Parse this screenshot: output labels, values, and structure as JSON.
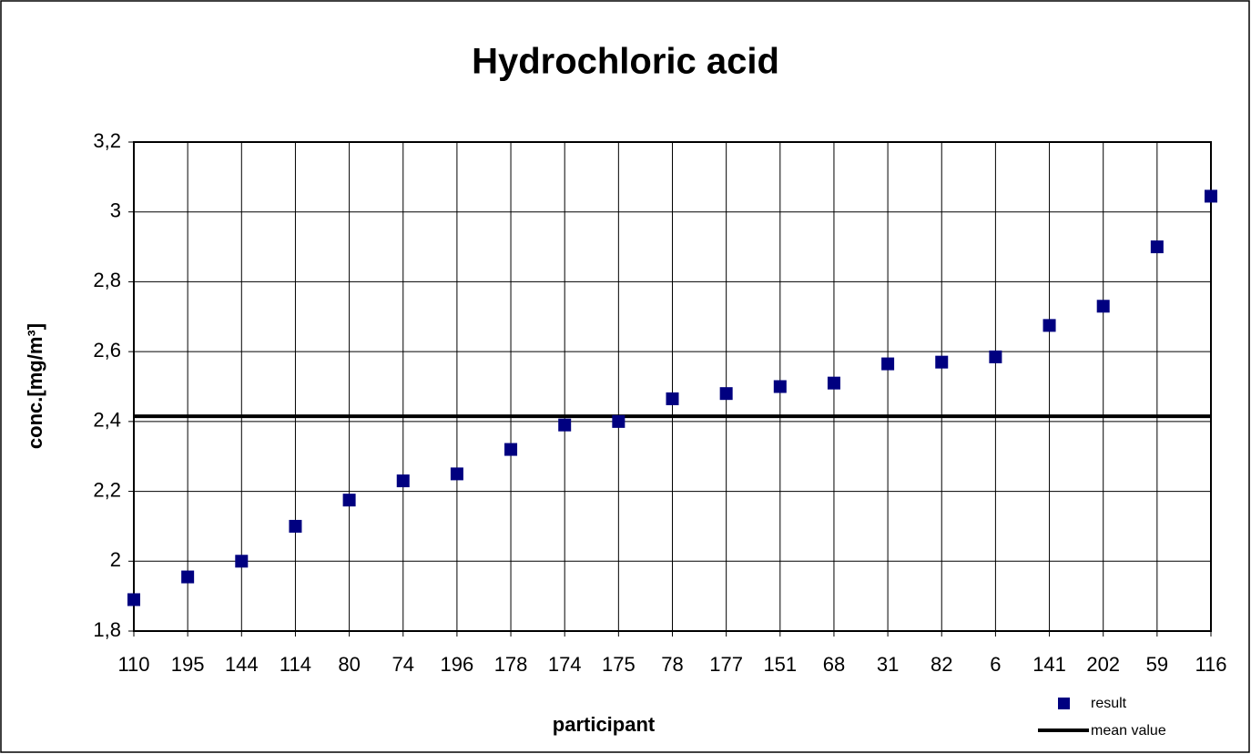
{
  "chart_data": {
    "type": "scatter",
    "title": "Hydrochloric acid",
    "y_label": "conc.[mg/m³]",
    "x_label": "participant",
    "categories": [
      "110",
      "195",
      "144",
      "114",
      "80",
      "74",
      "196",
      "178",
      "174",
      "175",
      "78",
      "177",
      "151",
      "68",
      "31",
      "82",
      "6",
      "141",
      "202",
      "59",
      "116"
    ],
    "series": [
      {
        "name": "result",
        "color": "#000080",
        "values": [
          1.89,
          1.955,
          2.0,
          2.1,
          2.175,
          2.23,
          2.25,
          2.32,
          2.39,
          2.4,
          2.465,
          2.48,
          2.5,
          2.51,
          2.565,
          2.57,
          2.585,
          2.675,
          2.73,
          2.9,
          3.045
        ]
      }
    ],
    "mean_line": {
      "name": "mean value",
      "color": "#000000",
      "value": 2.415
    },
    "ylim": [
      1.8,
      3.2
    ],
    "yticks": [
      {
        "value": 1.8,
        "label": "1,8"
      },
      2,
      {
        "value": 2.2,
        "label": "2,2"
      },
      {
        "value": 2.4,
        "label": "2,4"
      },
      {
        "value": 2.6,
        "label": "2,6"
      },
      {
        "value": 2.8,
        "label": "2,8"
      },
      3,
      {
        "value": 3.2,
        "label": "3,2"
      }
    ],
    "grid": true
  }
}
